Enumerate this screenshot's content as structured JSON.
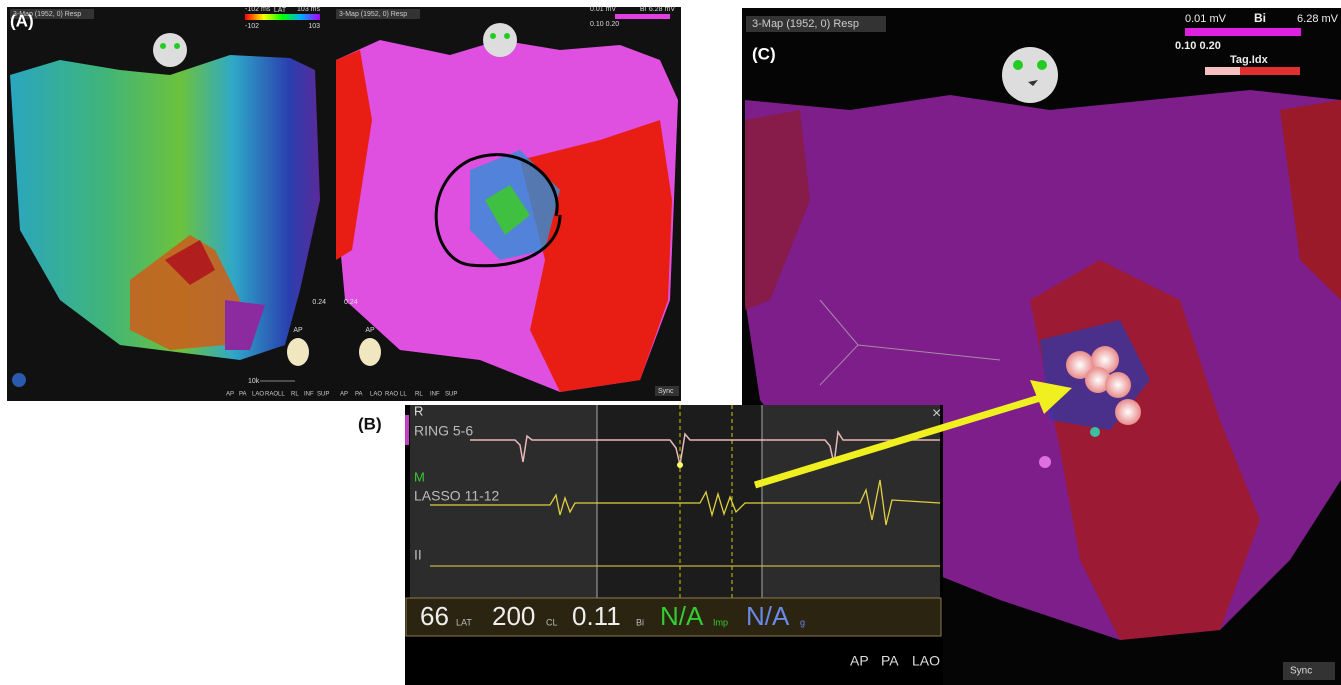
{
  "panel_a": {
    "label": "(A)",
    "lat_map": {
      "header": "3-Map (1952, 0) Resp",
      "legend_title": "LAT",
      "legend_min": "-102",
      "legend_max": "103",
      "legend_min_ms": "-102 ms",
      "legend_max_ms": "103 ms",
      "scale": "0.24",
      "orientation": "AP",
      "zoom": "10k",
      "views": [
        "AP",
        "PA",
        "LAO",
        "RAO",
        "LL",
        "RL",
        "INF",
        "SUP"
      ]
    },
    "voltage_map": {
      "header": "3-Map (1952, 0) Resp",
      "legend_title": "Bi",
      "legend_min": "0.01 mV",
      "legend_max": "6.28 mV",
      "range": "0.10 0.20",
      "scale": "0.24",
      "orientation": "AP",
      "views": [
        "AP",
        "PA",
        "LAO",
        "RAO",
        "LL",
        "RL",
        "INF",
        "SUP"
      ],
      "sync": "Sync"
    }
  },
  "panel_b": {
    "label": "(B)",
    "channels": [
      {
        "group": "R",
        "name": "RING 5-6"
      },
      {
        "group": "M",
        "name": "LASSO 11-12"
      },
      {
        "name": "II"
      }
    ],
    "readout": [
      {
        "value": 66,
        "unit": "LAT"
      },
      {
        "value": 200,
        "unit": "CL"
      },
      {
        "value": 0.11,
        "unit": "Bi"
      },
      {
        "value": "N/A",
        "unit": "Imp"
      },
      {
        "value": "N/A",
        "unit": "g"
      }
    ],
    "views": [
      "AP",
      "PA",
      "LAO"
    ]
  },
  "panel_c": {
    "label": "(C)",
    "header": "3-Map (1952, 0) Resp",
    "legend_title": "Bi",
    "legend_min": "0.01 mV",
    "legend_max": "6.28 mV",
    "range": "0.10 0.20",
    "tag_legend": "Tag.Idx",
    "sync": "Sync"
  }
}
